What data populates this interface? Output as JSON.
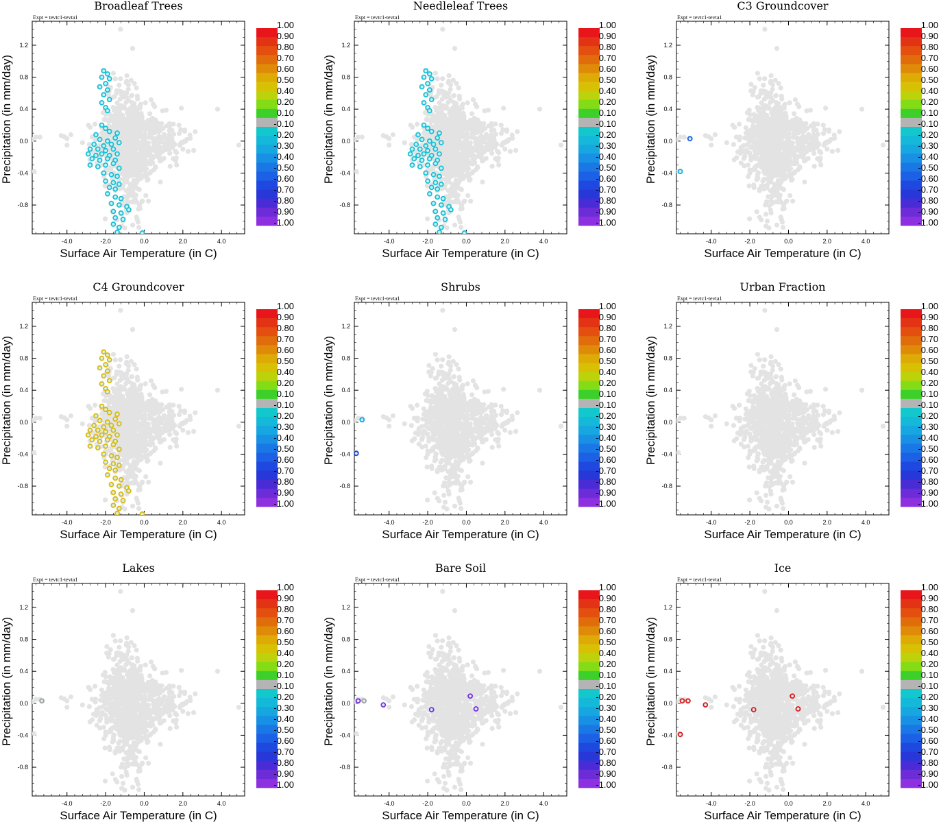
{
  "figure": {
    "experiment_label": "Expt = tevtc1-tevta1",
    "xlabel": "Surface Air Temperature (in C)",
    "ylabel": "Precipitation (in mm/day)",
    "x_ticks": [
      "-4.0",
      "-2.0",
      "0.0",
      "2.0",
      "4.0"
    ],
    "y_ticks": [
      "1.2",
      "0.8",
      "0.4",
      "0.0",
      "-0.4",
      "-0.8"
    ],
    "colorbar_labels": [
      "1.00",
      "0.90",
      "0.80",
      "0.70",
      "0.60",
      "0.50",
      "0.40",
      "0.20",
      "0.10",
      "-0.10",
      "-0.20",
      "-0.30",
      "-0.40",
      "-0.50",
      "-0.60",
      "-0.70",
      "-0.80",
      "-0.90",
      "-1.00"
    ],
    "colorbar_colors": [
      "#e8161b",
      "#e23414",
      "#e44e0f",
      "#e06c0b",
      "#df8a08",
      "#deaa06",
      "#d8c105",
      "#bcd20a",
      "#84dc16",
      "#3ed02a",
      "#b4b4b4",
      "#12c8cc",
      "#14b8d8",
      "#16a6e0",
      "#1890e4",
      "#1a78e6",
      "#1c60e6",
      "#1e48e0",
      "#2838d8",
      "#4a2cd6",
      "#6c2cd8",
      "#8c30e0"
    ],
    "background_color": "#e3e3e3"
  },
  "chart_data": [
    {
      "type": "scatter",
      "title": "Broadleaf Trees",
      "xlim": [
        -5.8,
        5.2
      ],
      "ylim": [
        -1.16,
        1.5
      ],
      "highlight_color": "#16c0d6",
      "highlight_points": [
        [
          -2.1,
          0.88
        ],
        [
          -1.9,
          0.84
        ],
        [
          -2.2,
          0.8
        ],
        [
          -1.8,
          0.78
        ],
        [
          -2.0,
          0.72
        ],
        [
          -2.3,
          0.68
        ],
        [
          -1.9,
          0.64
        ],
        [
          -2.1,
          0.58
        ],
        [
          -1.8,
          0.52
        ],
        [
          -2.2,
          0.48
        ],
        [
          -2.0,
          0.42
        ],
        [
          -1.9,
          0.38
        ],
        [
          -2.2,
          0.2
        ],
        [
          -2.0,
          0.16
        ],
        [
          -1.8,
          0.12
        ],
        [
          -2.5,
          0.08
        ],
        [
          -1.4,
          0.1
        ],
        [
          -2.3,
          0.02
        ],
        [
          -1.9,
          0.0
        ],
        [
          -1.5,
          0.04
        ],
        [
          -2.6,
          -0.04
        ],
        [
          -2.1,
          -0.06
        ],
        [
          -1.7,
          -0.04
        ],
        [
          -1.3,
          -0.02
        ],
        [
          -2.8,
          -0.1
        ],
        [
          -2.4,
          -0.1
        ],
        [
          -2.0,
          -0.12
        ],
        [
          -1.6,
          -0.1
        ],
        [
          -2.9,
          -0.16
        ],
        [
          -2.5,
          -0.18
        ],
        [
          -2.2,
          -0.16
        ],
        [
          -1.8,
          -0.18
        ],
        [
          -1.4,
          -0.16
        ],
        [
          -2.7,
          -0.22
        ],
        [
          -2.3,
          -0.24
        ],
        [
          -1.9,
          -0.22
        ],
        [
          -1.5,
          -0.24
        ],
        [
          -2.8,
          -0.3
        ],
        [
          -2.4,
          -0.32
        ],
        [
          -2.0,
          -0.3
        ],
        [
          -1.6,
          -0.28
        ],
        [
          -1.3,
          -0.34
        ],
        [
          -2.1,
          -0.4
        ],
        [
          -1.7,
          -0.42
        ],
        [
          -1.4,
          -0.44
        ],
        [
          -2.0,
          -0.5
        ],
        [
          -1.6,
          -0.52
        ],
        [
          -1.3,
          -0.54
        ],
        [
          -1.8,
          -0.58
        ],
        [
          -1.5,
          -0.6
        ],
        [
          -1.9,
          -0.66
        ],
        [
          -1.5,
          -0.7
        ],
        [
          -1.2,
          -0.72
        ],
        [
          -1.7,
          -0.78
        ],
        [
          -1.3,
          -0.8
        ],
        [
          -0.9,
          -0.82
        ],
        [
          -1.6,
          -0.88
        ],
        [
          -1.2,
          -0.9
        ],
        [
          -0.8,
          -0.86
        ],
        [
          -1.5,
          -0.96
        ],
        [
          -1.1,
          -0.98
        ],
        [
          -1.6,
          -1.04
        ],
        [
          -1.3,
          -1.08
        ],
        [
          -1.4,
          -1.14
        ],
        [
          -0.1,
          -1.15
        ]
      ]
    },
    {
      "type": "scatter",
      "title": "Needleleaf Trees",
      "xlim": [
        -5.8,
        5.2
      ],
      "ylim": [
        -1.16,
        1.5
      ],
      "highlight_color": "#16c0d6",
      "highlight_points": [
        [
          -2.1,
          0.88
        ],
        [
          -1.9,
          0.84
        ],
        [
          -2.2,
          0.8
        ],
        [
          -1.8,
          0.78
        ],
        [
          -2.0,
          0.72
        ],
        [
          -2.3,
          0.68
        ],
        [
          -1.9,
          0.64
        ],
        [
          -2.1,
          0.58
        ],
        [
          -1.8,
          0.52
        ],
        [
          -2.2,
          0.48
        ],
        [
          -2.0,
          0.42
        ],
        [
          -1.9,
          0.38
        ],
        [
          -2.2,
          0.2
        ],
        [
          -2.0,
          0.16
        ],
        [
          -1.8,
          0.12
        ],
        [
          -2.5,
          0.08
        ],
        [
          -1.4,
          0.1
        ],
        [
          -2.3,
          0.02
        ],
        [
          -1.9,
          0.0
        ],
        [
          -1.5,
          0.04
        ],
        [
          -2.6,
          -0.04
        ],
        [
          -2.1,
          -0.06
        ],
        [
          -1.7,
          -0.04
        ],
        [
          -1.3,
          -0.02
        ],
        [
          -2.8,
          -0.1
        ],
        [
          -2.4,
          -0.1
        ],
        [
          -2.0,
          -0.12
        ],
        [
          -1.6,
          -0.1
        ],
        [
          -2.9,
          -0.16
        ],
        [
          -2.5,
          -0.18
        ],
        [
          -2.2,
          -0.16
        ],
        [
          -1.8,
          -0.18
        ],
        [
          -1.4,
          -0.16
        ],
        [
          -2.7,
          -0.22
        ],
        [
          -2.3,
          -0.24
        ],
        [
          -1.9,
          -0.22
        ],
        [
          -1.5,
          -0.24
        ],
        [
          -2.8,
          -0.3
        ],
        [
          -2.4,
          -0.32
        ],
        [
          -2.0,
          -0.3
        ],
        [
          -1.6,
          -0.28
        ],
        [
          -1.3,
          -0.34
        ],
        [
          -2.1,
          -0.4
        ],
        [
          -1.7,
          -0.42
        ],
        [
          -1.4,
          -0.44
        ],
        [
          -2.0,
          -0.5
        ],
        [
          -1.6,
          -0.52
        ],
        [
          -1.3,
          -0.54
        ],
        [
          -1.8,
          -0.58
        ],
        [
          -1.5,
          -0.6
        ],
        [
          -1.9,
          -0.66
        ],
        [
          -1.5,
          -0.7
        ],
        [
          -1.2,
          -0.72
        ],
        [
          -1.7,
          -0.78
        ],
        [
          -1.3,
          -0.8
        ],
        [
          -0.9,
          -0.82
        ],
        [
          -1.6,
          -0.88
        ],
        [
          -1.2,
          -0.9
        ],
        [
          -0.8,
          -0.86
        ],
        [
          -1.5,
          -0.96
        ],
        [
          -1.1,
          -0.98
        ],
        [
          -1.6,
          -1.04
        ],
        [
          -1.3,
          -1.08
        ],
        [
          -1.4,
          -1.14
        ],
        [
          -0.1,
          -1.15
        ]
      ]
    },
    {
      "type": "scatter",
      "title": "C3 Groundcover",
      "xlim": [
        -5.8,
        5.2
      ],
      "ylim": [
        -1.16,
        1.5
      ],
      "highlight_color": "#1a78e6",
      "highlight_points": [
        [
          -5.1,
          0.03
        ],
        [
          -5.6,
          -0.38
        ]
      ],
      "point_colors": [
        "#1a60e0",
        "#16b0d8"
      ]
    },
    {
      "type": "scatter",
      "title": "C4 Groundcover",
      "xlim": [
        -5.8,
        5.2
      ],
      "ylim": [
        -1.16,
        1.5
      ],
      "highlight_color": "#deb80a",
      "highlight_points": [
        [
          -2.1,
          0.88
        ],
        [
          -1.9,
          0.84
        ],
        [
          -2.2,
          0.8
        ],
        [
          -1.8,
          0.78
        ],
        [
          -2.0,
          0.72
        ],
        [
          -2.3,
          0.68
        ],
        [
          -1.9,
          0.64
        ],
        [
          -2.1,
          0.58
        ],
        [
          -1.8,
          0.52
        ],
        [
          -2.2,
          0.48
        ],
        [
          -2.0,
          0.42
        ],
        [
          -1.9,
          0.38
        ],
        [
          -2.2,
          0.2
        ],
        [
          -2.0,
          0.16
        ],
        [
          -1.8,
          0.12
        ],
        [
          -2.5,
          0.08
        ],
        [
          -1.4,
          0.1
        ],
        [
          -2.3,
          0.02
        ],
        [
          -1.9,
          0.0
        ],
        [
          -1.5,
          0.04
        ],
        [
          -2.6,
          -0.04
        ],
        [
          -2.1,
          -0.06
        ],
        [
          -1.7,
          -0.04
        ],
        [
          -1.3,
          -0.02
        ],
        [
          -2.8,
          -0.1
        ],
        [
          -2.4,
          -0.1
        ],
        [
          -2.0,
          -0.12
        ],
        [
          -1.6,
          -0.1
        ],
        [
          -2.9,
          -0.16
        ],
        [
          -2.5,
          -0.18
        ],
        [
          -2.2,
          -0.16
        ],
        [
          -1.8,
          -0.18
        ],
        [
          -1.4,
          -0.16
        ],
        [
          -2.7,
          -0.22
        ],
        [
          -2.3,
          -0.24
        ],
        [
          -1.9,
          -0.22
        ],
        [
          -1.5,
          -0.24
        ],
        [
          -2.8,
          -0.3
        ],
        [
          -2.4,
          -0.32
        ],
        [
          -2.0,
          -0.3
        ],
        [
          -1.6,
          -0.28
        ],
        [
          -1.3,
          -0.34
        ],
        [
          -2.1,
          -0.4
        ],
        [
          -1.7,
          -0.42
        ],
        [
          -1.4,
          -0.44
        ],
        [
          -2.0,
          -0.5
        ],
        [
          -1.6,
          -0.52
        ],
        [
          -1.3,
          -0.54
        ],
        [
          -1.8,
          -0.58
        ],
        [
          -1.5,
          -0.6
        ],
        [
          -1.9,
          -0.66
        ],
        [
          -1.5,
          -0.7
        ],
        [
          -1.2,
          -0.72
        ],
        [
          -1.7,
          -0.78
        ],
        [
          -1.3,
          -0.8
        ],
        [
          -0.9,
          -0.82
        ],
        [
          -1.6,
          -0.88
        ],
        [
          -1.2,
          -0.9
        ],
        [
          -0.8,
          -0.86
        ],
        [
          -1.5,
          -0.96
        ],
        [
          -1.1,
          -0.98
        ],
        [
          -1.6,
          -1.04
        ],
        [
          -1.3,
          -1.08
        ],
        [
          -1.4,
          -1.14
        ],
        [
          -0.1,
          -1.15
        ]
      ]
    },
    {
      "type": "scatter",
      "title": "Shrubs",
      "xlim": [
        -5.8,
        5.2
      ],
      "ylim": [
        -1.16,
        1.5
      ],
      "highlight_color": "#16a6e0",
      "highlight_points": [
        [
          -5.4,
          0.03
        ],
        [
          -5.7,
          -0.39
        ]
      ],
      "point_colors": [
        "#16a6e0",
        "#1c40d0"
      ]
    },
    {
      "type": "scatter",
      "title": "Urban Fraction",
      "xlim": [
        -5.8,
        5.2
      ],
      "ylim": [
        -1.16,
        1.5
      ],
      "highlight_color": "#e3e3e3",
      "highlight_points": []
    },
    {
      "type": "scatter",
      "title": "Lakes",
      "xlim": [
        -5.8,
        5.2
      ],
      "ylim": [
        -1.16,
        1.5
      ],
      "highlight_color": "#a0a0a0",
      "highlight_points": [
        [
          -5.3,
          0.03
        ]
      ]
    },
    {
      "type": "scatter",
      "title": "Bare Soil",
      "xlim": [
        -5.8,
        5.2
      ],
      "ylim": [
        -1.16,
        1.5
      ],
      "highlight_color": "#7a2ce0",
      "highlight_points": [
        [
          -5.6,
          0.03
        ],
        [
          -5.3,
          0.03
        ],
        [
          -4.3,
          -0.02
        ],
        [
          -1.8,
          -0.08
        ],
        [
          0.2,
          0.09
        ],
        [
          0.5,
          -0.07
        ]
      ],
      "point_colors": [
        "#7a2ce0",
        "#a0a0a0",
        "#7a2ce0",
        "#7a2ce0",
        "#7a2ce0",
        "#7a2ce0"
      ]
    },
    {
      "type": "scatter",
      "title": "Ice",
      "xlim": [
        -5.8,
        5.2
      ],
      "ylim": [
        -1.16,
        1.5
      ],
      "highlight_color": "#e01818",
      "highlight_points": [
        [
          -5.5,
          0.03
        ],
        [
          -5.2,
          0.03
        ],
        [
          -4.3,
          -0.02
        ],
        [
          -1.8,
          -0.08
        ],
        [
          0.2,
          0.09
        ],
        [
          0.5,
          -0.07
        ],
        [
          -5.6,
          -0.39
        ]
      ]
    }
  ]
}
